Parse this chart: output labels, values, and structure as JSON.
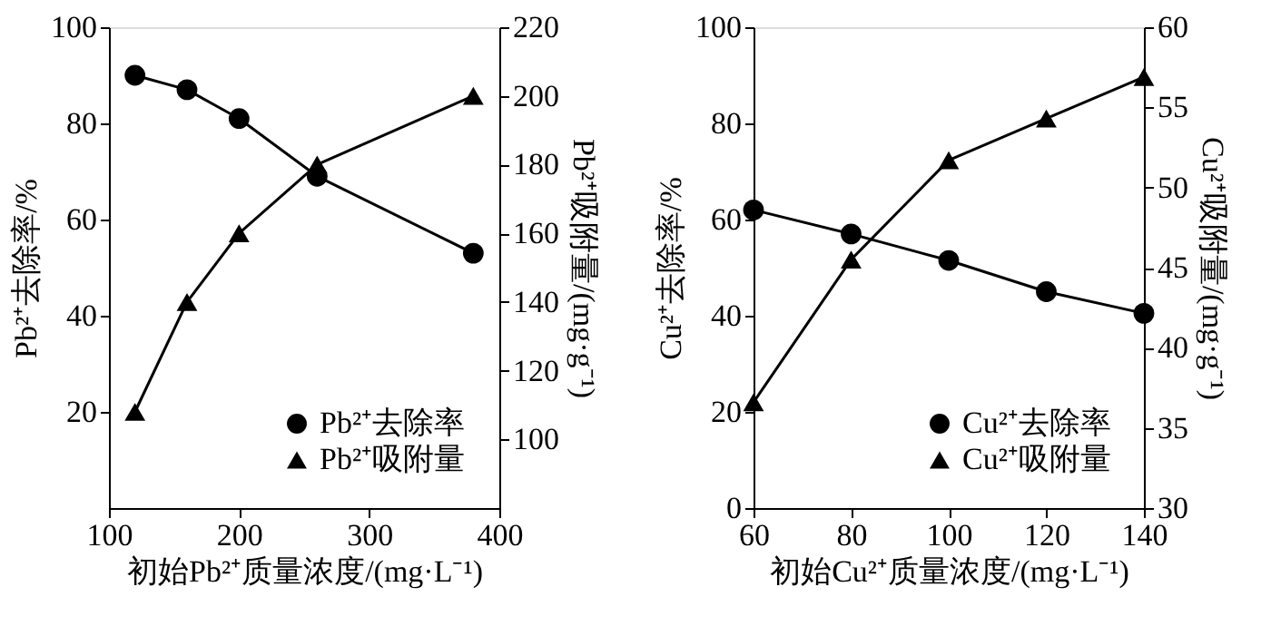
{
  "chart_data": [
    {
      "type": "line",
      "xlabel": "初始Pb²⁺质量浓度/(mg·L⁻¹)",
      "ylabel": "Pb²⁺去除率/%",
      "y2label": "Pb²⁺吸附量/(mg·g⁻¹)",
      "x": [
        120,
        160,
        200,
        260,
        380
      ],
      "xlim": [
        100,
        400
      ],
      "xticks": [
        100,
        200,
        300,
        400
      ],
      "ylim": [
        0,
        100
      ],
      "yticks": [
        20,
        40,
        60,
        80,
        100
      ],
      "y2lim": [
        80,
        220
      ],
      "y2ticks": [
        100,
        120,
        140,
        160,
        180,
        200,
        220
      ],
      "grid": false,
      "legend": "bottom right",
      "series": [
        {
          "name": "Pb²⁺去除率",
          "color": "#000000",
          "marker": "circle",
          "values": [
            90,
            87,
            81,
            69,
            53
          ]
        },
        {
          "name": "Pb²⁺吸附量",
          "color": "#000000",
          "marker": "triangle",
          "axis": "y2",
          "values": [
            108,
            140,
            160,
            180,
            200
          ]
        }
      ]
    },
    {
      "type": "line",
      "xlabel": "初始Cu²⁺质量浓度/(mg·L⁻¹)",
      "ylabel": "Cu²⁺去除率/%",
      "y2label": "Cu²⁺吸附量/(mg·g⁻¹)",
      "x": [
        60,
        80,
        100,
        120,
        140
      ],
      "xlim": [
        60,
        140
      ],
      "xticks": [
        60,
        80,
        100,
        120,
        140
      ],
      "ylim": [
        0,
        100
      ],
      "yticks": [
        0,
        20,
        40,
        60,
        80,
        100
      ],
      "y2lim": [
        30,
        60
      ],
      "y2ticks": [
        30,
        35,
        40,
        45,
        50,
        55,
        60
      ],
      "grid": false,
      "legend": "bottom right",
      "series": [
        {
          "name": "Cu²⁺去除率",
          "color": "#000000",
          "marker": "circle",
          "values": [
            62,
            57,
            51.5,
            45,
            40.5
          ]
        },
        {
          "name": "Cu²⁺吸附量",
          "color": "#000000",
          "marker": "triangle",
          "axis": "y2",
          "values": [
            36.6,
            45.5,
            51.7,
            54.3,
            56.9
          ]
        }
      ]
    }
  ]
}
